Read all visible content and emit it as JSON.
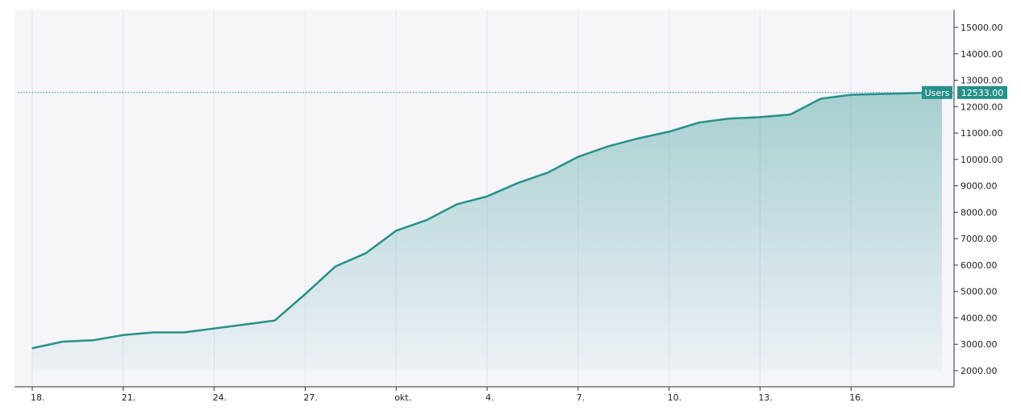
{
  "chart_data": {
    "type": "area",
    "title": "",
    "xlabel": "",
    "ylabel": "",
    "x_tick_labels": [
      "18.",
      "21.",
      "24.",
      "27.",
      "okt.",
      "4.",
      "7.",
      "10.",
      "13.",
      "16."
    ],
    "y_tick_labels": [
      "2000.00",
      "3000.00",
      "4000.00",
      "5000.00",
      "6000.00",
      "7000.00",
      "8000.00",
      "9000.00",
      "10000.00",
      "11000.00",
      "12000.00",
      "13000.00",
      "14000.00",
      "15000.00"
    ],
    "ylim": [
      2000,
      15000
    ],
    "x_start_label": "18.",
    "series": [
      {
        "name": "Users",
        "color": "#26908a",
        "values": [
          2850,
          3100,
          3150,
          3350,
          3450,
          3450,
          3600,
          3750,
          3900,
          4900,
          5950,
          6450,
          7300,
          7700,
          8300,
          8600,
          9100,
          9500,
          10100,
          10500,
          10800,
          11050,
          11400,
          11550,
          11600,
          11700,
          12300,
          12450,
          12480,
          12510,
          12533
        ]
      }
    ],
    "last_value_label": {
      "series": "Users",
      "text": "12533.00",
      "value": 12533
    },
    "grid": true,
    "legend": "none"
  }
}
